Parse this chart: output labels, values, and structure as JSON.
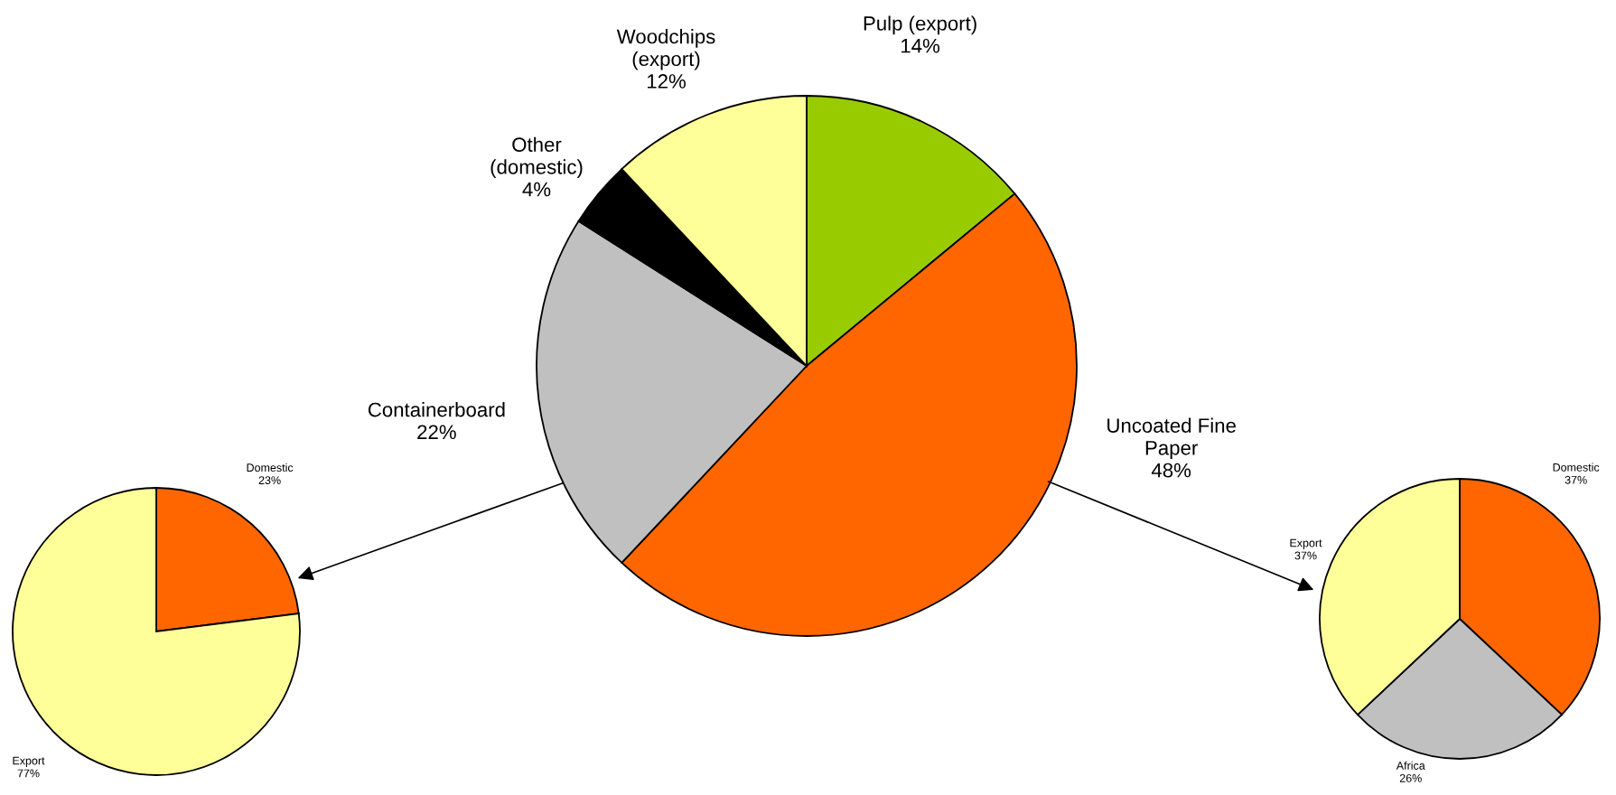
{
  "chart_data": [
    {
      "type": "pie",
      "categories": [
        "Pulp (export)",
        "Uncoated Fine\nPaper",
        "Containerboard",
        "Other\n(domestic)",
        "Woodchips\n(export)"
      ],
      "values": [
        14,
        48,
        22,
        4,
        12
      ],
      "colors": [
        "#99cc00",
        "#ff6600",
        "#c0c0c0",
        "#000000",
        "#ffff99"
      ],
      "value_labels": [
        "14%",
        "48%",
        "22%",
        "4%",
        "12%"
      ]
    },
    {
      "type": "pie",
      "categories": [
        "Domestic",
        "Export"
      ],
      "values": [
        23,
        77
      ],
      "colors": [
        "#ff6600",
        "#ffff99"
      ],
      "value_labels": [
        "23%",
        "77%"
      ]
    },
    {
      "type": "pie",
      "categories": [
        "Domestic",
        "Africa",
        "Export"
      ],
      "values": [
        37,
        26,
        37
      ],
      "colors": [
        "#ff6600",
        "#c0c0c0",
        "#ffff99"
      ],
      "value_labels": [
        "37%",
        "26%",
        "37%"
      ]
    }
  ]
}
